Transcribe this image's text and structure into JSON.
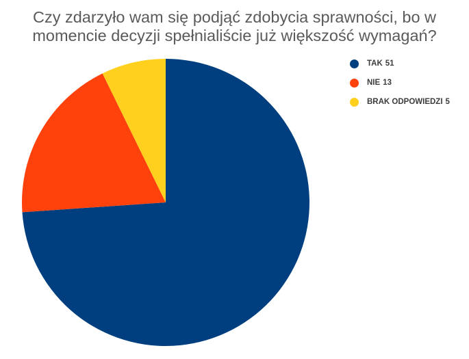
{
  "chart_data": {
    "type": "pie",
    "title_lines": [
      "Czy zdarzyło wam się podjąć zdobycia sprawności, bo w",
      "momencie decyzji spełnialiście już większość wymagań?"
    ],
    "slices": [
      {
        "label": "TAK",
        "value": 51,
        "color": "#003f7f"
      },
      {
        "label": "NIE",
        "value": 13,
        "color": "#ff410c"
      },
      {
        "label": "BRAK ODPOWIEDZI",
        "value": 5,
        "color": "#ffd11e"
      }
    ],
    "start_angle_deg": 0,
    "direction": "clockwise",
    "legend_position": "right"
  }
}
